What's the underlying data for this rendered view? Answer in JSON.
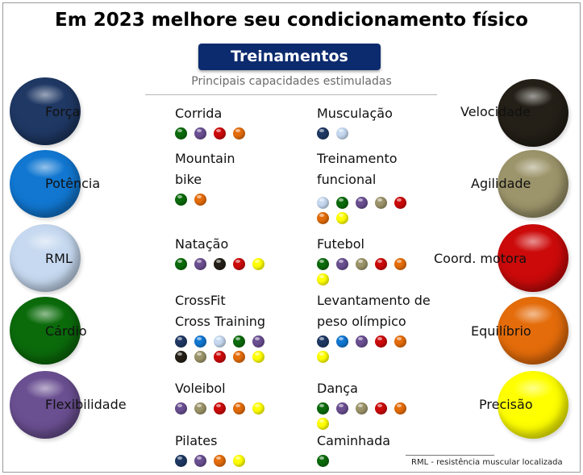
{
  "title": "Em 2023 melhore seu condicionamento físico",
  "badge": "Treinamentos",
  "subtitle": "Principais capacidades estimuladas",
  "footnote": "RML - resistência muscular localizada",
  "capacities": {
    "forca": {
      "label": "Força",
      "color": "#1f3864"
    },
    "potencia": {
      "label": "Potência",
      "color": "#1177d1"
    },
    "rml": {
      "label": "RML",
      "color": "#c6d9f0"
    },
    "cardio": {
      "label": "Cárdio",
      "color": "#0b6b0b"
    },
    "flexibilidade": {
      "label": "Flexibilidade",
      "color": "#6a4f91"
    },
    "velocidade": {
      "label": "Velocidade",
      "color": "#241f17"
    },
    "agilidade": {
      "label": "Agilidade",
      "color": "#9c946a"
    },
    "coord": {
      "label": "Coord. motora",
      "color": "#cc0a0a"
    },
    "equilibrio": {
      "label": "Equilíbrio",
      "color": "#e46c0a"
    },
    "precisao": {
      "label": "Precisão",
      "color": "#ffff00"
    }
  },
  "activities": [
    {
      "name": "Corrida",
      "dots": [
        "cardio",
        "flexibilidade",
        "coord",
        "equilibrio"
      ]
    },
    {
      "name": "Musculação",
      "dots": [
        "forca",
        "rml"
      ]
    },
    {
      "name": "Mountain\nbike",
      "dots": [
        "cardio",
        "equilibrio"
      ]
    },
    {
      "name": "Treinamento\nfuncional",
      "dots": [
        "rml",
        "cardio",
        "flexibilidade",
        "agilidade",
        "coord",
        "equilibrio",
        "precisao"
      ]
    },
    {
      "name": "Natação",
      "dots": [
        "cardio",
        "flexibilidade",
        "velocidade",
        "coord",
        "precisao"
      ]
    },
    {
      "name": "Futebol",
      "dots": [
        "cardio",
        "flexibilidade",
        "agilidade",
        "coord",
        "equilibrio",
        "precisao"
      ]
    },
    {
      "name": "CrossFit\nCross Training",
      "dots": [
        "forca",
        "potencia",
        "rml",
        "cardio",
        "flexibilidade",
        "velocidade",
        "agilidade",
        "coord",
        "equilibrio",
        "precisao"
      ]
    },
    {
      "name": "Levantamento de\npeso olímpico",
      "dots": [
        "forca",
        "potencia",
        "flexibilidade",
        "coord",
        "equilibrio",
        "precisao"
      ]
    },
    {
      "name": "Voleibol",
      "dots": [
        "flexibilidade",
        "agilidade",
        "coord",
        "equilibrio",
        "precisao"
      ]
    },
    {
      "name": "Dança",
      "dots": [
        "cardio",
        "flexibilidade",
        "agilidade",
        "coord",
        "equilibrio",
        "precisao"
      ]
    },
    {
      "name": "Pilates",
      "dots": [
        "forca",
        "flexibilidade",
        "equilibrio",
        "precisao"
      ]
    },
    {
      "name": "Caminhada",
      "dots": [
        "cardio"
      ]
    }
  ]
}
